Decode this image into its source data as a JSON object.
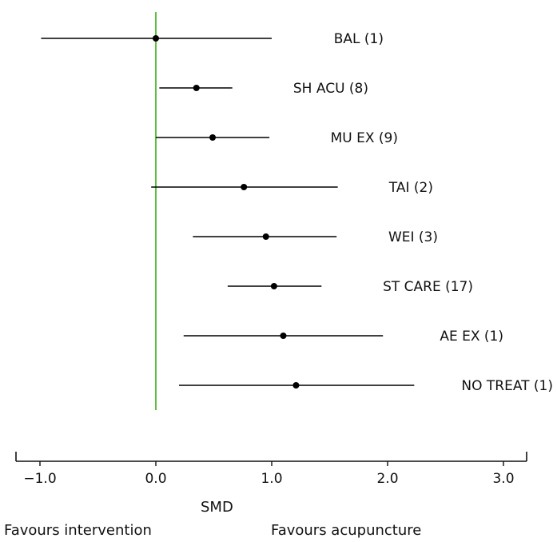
{
  "chart_data": {
    "type": "forest",
    "xlabel": "SMD",
    "xlim": [
      -1.2,
      3.2
    ],
    "xticks": [
      -1.0,
      0.0,
      1.0,
      2.0,
      3.0
    ],
    "xtick_labels": [
      "−1.0",
      "0.0",
      "1.0",
      "2.0",
      "3.0"
    ],
    "reference_line": {
      "x": 0.0,
      "color": "#5cbf3f"
    },
    "marker_color": "#000000",
    "rows": [
      {
        "label": "BAL (1)",
        "estimate": 0.0,
        "lower": -0.99,
        "upper": 1.0
      },
      {
        "label": "SH ACU (8)",
        "estimate": 0.35,
        "lower": 0.03,
        "upper": 0.66
      },
      {
        "label": "MU EX (9)",
        "estimate": 0.49,
        "lower": 0.0,
        "upper": 0.98
      },
      {
        "label": "TAI (2)",
        "estimate": 0.76,
        "lower": -0.04,
        "upper": 1.57
      },
      {
        "label": "WEI (3)",
        "estimate": 0.95,
        "lower": 0.32,
        "upper": 1.56
      },
      {
        "label": "ST CARE (17)",
        "estimate": 1.02,
        "lower": 0.62,
        "upper": 1.43
      },
      {
        "label": "AE EX (1)",
        "estimate": 1.1,
        "lower": 0.24,
        "upper": 1.96
      },
      {
        "label": "NO TREAT (1)",
        "estimate": 1.21,
        "lower": 0.2,
        "upper": 2.23
      }
    ],
    "favours_left": "Favours intervention",
    "favours_right": "Favours acupuncture"
  }
}
